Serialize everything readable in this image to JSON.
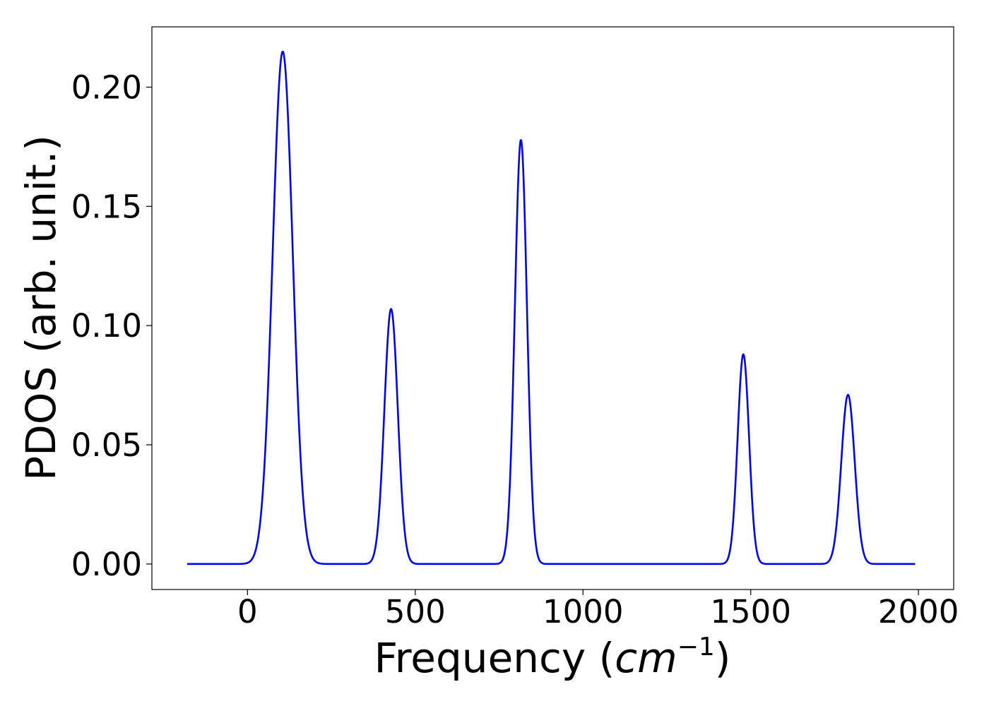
{
  "chart_data": {
    "type": "line",
    "title": "",
    "xlabel_prefix": "Frequency (",
    "xlabel_var": "cm",
    "xlabel_exponent": "−1",
    "xlabel_suffix": ")",
    "ylabel": "PDOS (arb. unit.)",
    "xlim": [
      -285,
      2105
    ],
    "ylim": [
      -0.0107,
      0.2253
    ],
    "xticks": [
      0,
      500,
      1000,
      1500,
      2000
    ],
    "xtick_labels": [
      "0",
      "500",
      "1000",
      "1500",
      "2000"
    ],
    "yticks": [
      0.0,
      0.05,
      0.1,
      0.15,
      0.2
    ],
    "ytick_labels": [
      "0.00",
      "0.05",
      "0.10",
      "0.15",
      "0.20"
    ],
    "grid": false,
    "series": [
      {
        "color": "#0000ff",
        "x_start": -180,
        "x_end": 1990,
        "peaks": [
          {
            "center": 105,
            "height": 0.215,
            "sigma": 30
          },
          {
            "center": 428,
            "height": 0.107,
            "sigma": 20
          },
          {
            "center": 815,
            "height": 0.178,
            "sigma": 18
          },
          {
            "center": 1478,
            "height": 0.088,
            "sigma": 17
          },
          {
            "center": 1790,
            "height": 0.071,
            "sigma": 20
          }
        ]
      }
    ]
  }
}
